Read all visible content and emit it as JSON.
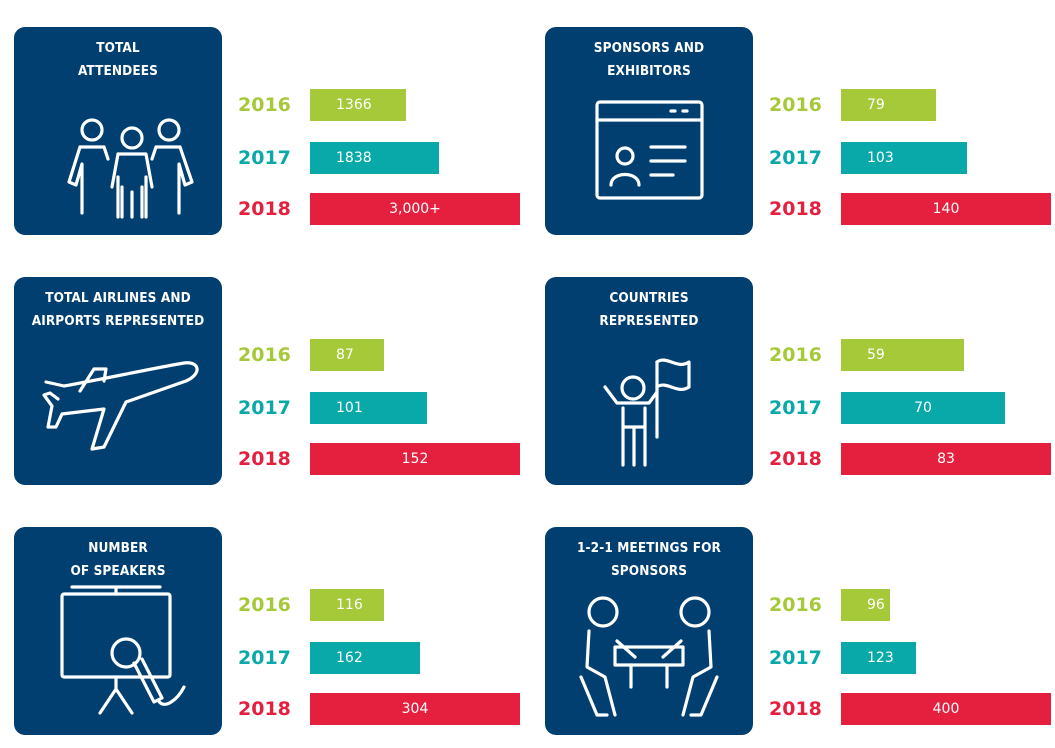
{
  "colors": {
    "card": "#003f6f",
    "2016": "#a6c93a",
    "2017": "#0aa9a9",
    "2018": "#e5203f"
  },
  "chart_data": [
    {
      "type": "bar",
      "id": "attendees",
      "title": "TOTAL\nATTENDEES",
      "icon": "people-group-icon",
      "categories": [
        "2016",
        "2017",
        "2018"
      ],
      "values": [
        1366,
        1838,
        3000
      ],
      "labels": [
        "1366",
        "1838",
        "3,000+"
      ],
      "bar_fraction": [
        0.455,
        0.613,
        1
      ]
    },
    {
      "type": "bar",
      "id": "sponsors",
      "title": "SPONSORS AND\nEXHIBITORS",
      "icon": "browser-profile-icon",
      "categories": [
        "2016",
        "2017",
        "2018"
      ],
      "values": [
        79,
        103,
        140
      ],
      "labels": [
        "79",
        "103",
        "140"
      ],
      "bar_fraction": [
        0.45,
        0.6,
        1
      ]
    },
    {
      "type": "bar",
      "id": "airlines",
      "title": "TOTAL AIRLINES AND\nAIRPORTS REPRESENTED",
      "icon": "airplane-icon",
      "categories": [
        "2016",
        "2017",
        "2018"
      ],
      "values": [
        87,
        101,
        152
      ],
      "labels": [
        "87",
        "101",
        "152"
      ],
      "bar_fraction": [
        0.35,
        0.555,
        1
      ]
    },
    {
      "type": "bar",
      "id": "countries",
      "title": "COUNTRIES\nREPRESENTED",
      "icon": "person-flag-icon",
      "categories": [
        "2016",
        "2017",
        "2018"
      ],
      "values": [
        59,
        70,
        83
      ],
      "labels": [
        "59",
        "70",
        "83"
      ],
      "bar_fraction": [
        0.585,
        0.78,
        1
      ]
    },
    {
      "type": "bar",
      "id": "speakers",
      "title": "NUMBER\nOF SPEAKERS",
      "icon": "presentation-microphone-icon",
      "categories": [
        "2016",
        "2017",
        "2018"
      ],
      "values": [
        116,
        162,
        304
      ],
      "labels": [
        "116",
        "162",
        "304"
      ],
      "bar_fraction": [
        0.35,
        0.525,
        1
      ]
    },
    {
      "type": "bar",
      "id": "meetings",
      "title": "1-2-1 MEETINGS FOR\nSPONSORS",
      "icon": "meeting-table-icon",
      "categories": [
        "2016",
        "2017",
        "2018"
      ],
      "values": [
        96,
        123,
        400
      ],
      "labels": [
        "96",
        "123",
        "400"
      ],
      "bar_fraction": [
        0.235,
        0.355,
        1
      ]
    }
  ]
}
